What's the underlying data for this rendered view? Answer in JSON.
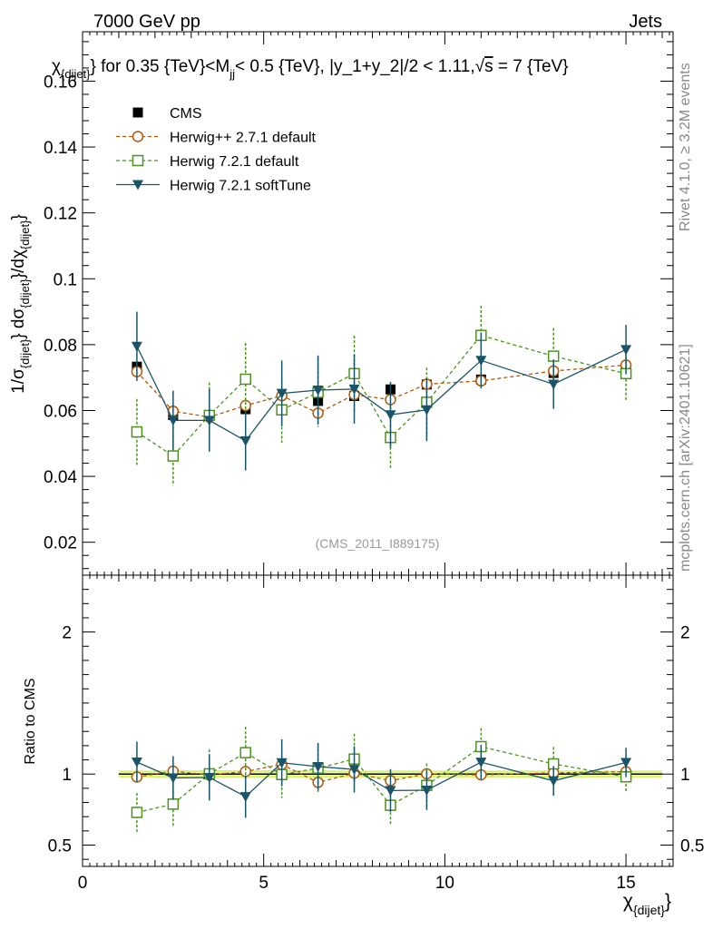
{
  "header": {
    "energy_label": "7000 GeV pp",
    "category_label": "Jets"
  },
  "side_labels": {
    "rivet": "Rivet 4.1.0, ≥ 3.2M events",
    "mcplots": "mcplots.cern.ch [arXiv:2401.10621]"
  },
  "chart_data": {
    "type": "scatter",
    "title": "χ_{dijet} for 0.35 {TeV}<M_jj< 0.5 {TeV}, |y_1+y_2|/2 < 1.11,√s = 7 {TeV}",
    "title_parts": {
      "prefix": "χ",
      "prefix_sub": "{dijet}",
      "main": "} for 0.35 {TeV}<M",
      "mjj_sub": "jj",
      "rest": "< 0.5 {TeV}, |y_1+y_2|/2 < 1.11,",
      "sqrt": "√",
      "s": "s",
      "tail": " = 7 {TeV}"
    },
    "watermark": "(CMS_2011_I889175)",
    "ylabel": {
      "part1": "1/σ",
      "sub1": "{dijet}",
      "part2": "} dσ",
      "sub2": "{dijet}",
      "part3": "}/dχ",
      "sub3": "{dijet}",
      "part4": "}"
    },
    "xlabel": {
      "main": "χ",
      "sub": "{dijet}",
      "close": "}"
    },
    "ratio_ylabel": "Ratio to CMS",
    "xlim": [
      0,
      16.3
    ],
    "ylim": [
      0.01,
      0.175
    ],
    "ratio_ylim": [
      0.35,
      2.4
    ],
    "yticks": [
      {
        "v": 0.02,
        "label": "0.02"
      },
      {
        "v": 0.04,
        "label": "0.04"
      },
      {
        "v": 0.06,
        "label": "0.06"
      },
      {
        "v": 0.08,
        "label": "0.08"
      },
      {
        "v": 0.1,
        "label": "0.1"
      },
      {
        "v": 0.12,
        "label": "0.12"
      },
      {
        "v": 0.14,
        "label": "0.14"
      },
      {
        "v": 0.16,
        "label": "0.16"
      }
    ],
    "ratio_yticks": [
      {
        "v": 0.5,
        "label": "0.5"
      },
      {
        "v": 1,
        "label": "1"
      },
      {
        "v": 2,
        "label": "2"
      }
    ],
    "xticks": [
      {
        "v": 0,
        "label": "0"
      },
      {
        "v": 5,
        "label": "5"
      },
      {
        "v": 10,
        "label": "10"
      },
      {
        "v": 15,
        "label": "15"
      }
    ],
    "bin_edges": [
      1,
      2,
      3,
      4,
      5,
      6,
      7,
      8,
      9,
      10,
      12,
      14,
      16
    ],
    "x": [
      1.5,
      2.5,
      3.5,
      4.5,
      5.5,
      6.5,
      7.5,
      8.5,
      9.5,
      11,
      13,
      15
    ],
    "data": {
      "name": "CMS",
      "color": "#000000",
      "values": [
        0.0733,
        0.0586,
        0.0584,
        0.0604,
        0.0604,
        0.0629,
        0.0644,
        0.0664,
        0.0679,
        0.0694,
        0.0714,
        0.0726
      ],
      "errors": [
        0.0018,
        0.0016,
        0.0016,
        0.0016,
        0.0016,
        0.0016,
        0.0016,
        0.0017,
        0.0017,
        0.0017,
        0.0018,
        0.0018
      ]
    },
    "series": [
      {
        "name": "Herwig++ 2.7.1 default",
        "color": "#b35806",
        "marker": "circle",
        "dash": "4,3",
        "values": [
          0.0718,
          0.0598,
          0.058,
          0.0615,
          0.0645,
          0.0592,
          0.0648,
          0.0633,
          0.068,
          0.069,
          0.072,
          0.0738
        ],
        "errors": [
          0.0012,
          0.0012,
          0.0012,
          0.0012,
          0.0012,
          0.0012,
          0.0012,
          0.0012,
          0.0012,
          0.0012,
          0.0012,
          0.0012
        ]
      },
      {
        "name": "Herwig 7.2.1 default",
        "color": "#4d9221",
        "marker": "square",
        "dash": "4,3",
        "values": [
          0.0535,
          0.0462,
          0.0585,
          0.0695,
          0.0602,
          0.0655,
          0.0712,
          0.0518,
          0.0625,
          0.0828,
          0.0765,
          0.0712
        ],
        "errors": [
          0.01,
          0.009,
          0.01,
          0.011,
          0.01,
          0.0105,
          0.0115,
          0.0095,
          0.0105,
          0.009,
          0.0085,
          0.008
        ]
      },
      {
        "name": "Herwig 7.2.1 softTune",
        "color": "#1a5468",
        "marker": "triangle-down",
        "dash": "",
        "values": [
          0.0795,
          0.057,
          0.057,
          0.0508,
          0.0652,
          0.0662,
          0.0665,
          0.0587,
          0.0602,
          0.0752,
          0.068,
          0.0785
        ],
        "errors": [
          0.0105,
          0.009,
          0.0095,
          0.009,
          0.01,
          0.0105,
          0.0105,
          0.01,
          0.0095,
          0.0085,
          0.0075,
          0.0075
        ]
      }
    ],
    "ratio": {
      "band_color": "#d9f27a",
      "band_core_color": "#f5ff9a",
      "band_halfwidth": [
        0.025,
        0.027,
        0.027,
        0.027,
        0.027,
        0.026,
        0.025,
        0.025,
        0.025,
        0.025,
        0.025,
        0.025
      ]
    },
    "legend_position": "top-left"
  }
}
